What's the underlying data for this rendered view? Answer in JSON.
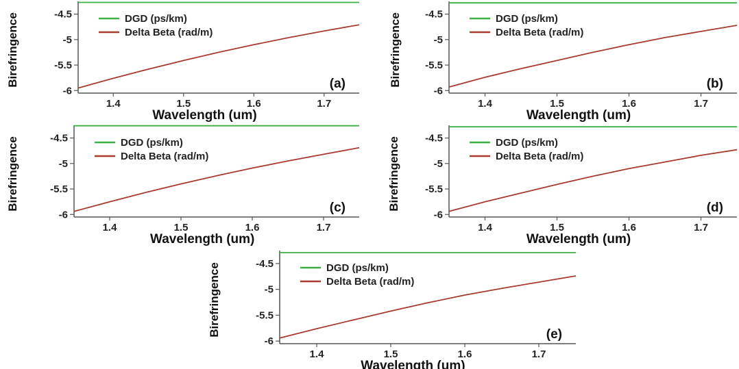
{
  "colors": {
    "dgd": "#3cb043",
    "delta_beta": "#a83a2f",
    "axis": "#555555"
  },
  "chart_data": [
    {
      "type": "line",
      "panel": "(a)",
      "xlabel": "Wavelength (um)",
      "ylabel": "Birefringence",
      "xlim": [
        1.35,
        1.75
      ],
      "ylim": [
        -6.05,
        -4.25
      ],
      "xticks": [
        "1.4",
        "1.5",
        "1.6",
        "1.7"
      ],
      "yticks": [
        "-4.5",
        "-5",
        "-5.5",
        "-6"
      ],
      "legend_position": "top-left",
      "series": [
        {
          "name": "DGD (ps/km)",
          "color": "#3cb043",
          "x": [
            1.35,
            1.75
          ],
          "y": [
            -4.27,
            -4.27
          ]
        },
        {
          "name": "Delta Beta (rad/m)",
          "color": "#a83a2f",
          "x": [
            1.35,
            1.4,
            1.45,
            1.5,
            1.55,
            1.6,
            1.65,
            1.7,
            1.75
          ],
          "y": [
            -5.95,
            -5.76,
            -5.58,
            -5.41,
            -5.25,
            -5.1,
            -4.96,
            -4.83,
            -4.71
          ]
        }
      ]
    },
    {
      "type": "line",
      "panel": "(b)",
      "xlabel": "Wavelength (um)",
      "ylabel": "Birefringence",
      "xlim": [
        1.35,
        1.75
      ],
      "ylim": [
        -6.05,
        -4.25
      ],
      "xticks": [
        "1.4",
        "1.5",
        "1.6",
        "1.7"
      ],
      "yticks": [
        "-4.5",
        "-5",
        "-5.5",
        "-6"
      ],
      "legend_position": "top-left",
      "series": [
        {
          "name": "DGD (ps/km)",
          "color": "#3cb043",
          "x": [
            1.35,
            1.75
          ],
          "y": [
            -4.28,
            -4.28
          ]
        },
        {
          "name": "Delta Beta (rad/m)",
          "color": "#a83a2f",
          "x": [
            1.35,
            1.4,
            1.45,
            1.5,
            1.55,
            1.6,
            1.65,
            1.7,
            1.75
          ],
          "y": [
            -5.93,
            -5.74,
            -5.57,
            -5.41,
            -5.25,
            -5.1,
            -4.96,
            -4.84,
            -4.72
          ]
        }
      ]
    },
    {
      "type": "line",
      "panel": "(c)",
      "xlabel": "Wavelength (um)",
      "ylabel": "Birefringence",
      "xlim": [
        1.35,
        1.75
      ],
      "ylim": [
        -6.05,
        -4.25
      ],
      "xticks": [
        "1.4",
        "1.5",
        "1.6",
        "1.7"
      ],
      "yticks": [
        "-4.5",
        "-5",
        "-5.5",
        "-6"
      ],
      "legend_position": "top-left",
      "series": [
        {
          "name": "DGD (ps/km)",
          "color": "#3cb043",
          "x": [
            1.35,
            1.75
          ],
          "y": [
            -4.26,
            -4.26
          ]
        },
        {
          "name": "Delta Beta (rad/m)",
          "color": "#a83a2f",
          "x": [
            1.35,
            1.4,
            1.45,
            1.5,
            1.55,
            1.6,
            1.65,
            1.7,
            1.75
          ],
          "y": [
            -5.94,
            -5.75,
            -5.57,
            -5.4,
            -5.24,
            -5.09,
            -4.95,
            -4.82,
            -4.69
          ]
        }
      ]
    },
    {
      "type": "line",
      "panel": "(d)",
      "xlabel": "Wavelength (um)",
      "ylabel": "Birefringence",
      "xlim": [
        1.35,
        1.75
      ],
      "ylim": [
        -6.05,
        -4.25
      ],
      "xticks": [
        "1.4",
        "1.5",
        "1.6",
        "1.7"
      ],
      "yticks": [
        "-4.5",
        "-5",
        "-5.5",
        "-6"
      ],
      "legend_position": "top-left",
      "series": [
        {
          "name": "DGD (ps/km)",
          "color": "#3cb043",
          "x": [
            1.35,
            1.75
          ],
          "y": [
            -4.28,
            -4.28
          ]
        },
        {
          "name": "Delta Beta (rad/m)",
          "color": "#a83a2f",
          "x": [
            1.35,
            1.4,
            1.45,
            1.5,
            1.55,
            1.6,
            1.65,
            1.7,
            1.75
          ],
          "y": [
            -5.94,
            -5.75,
            -5.58,
            -5.41,
            -5.25,
            -5.1,
            -4.97,
            -4.84,
            -4.73
          ]
        }
      ]
    },
    {
      "type": "line",
      "panel": "(e)",
      "xlabel": "Wavelength (um)",
      "ylabel": "Birefringence",
      "xlim": [
        1.35,
        1.75
      ],
      "ylim": [
        -6.05,
        -4.25
      ],
      "xticks": [
        "1.4",
        "1.5",
        "1.6",
        "1.7"
      ],
      "yticks": [
        "-4.5",
        "-5",
        "-5.5",
        "-6"
      ],
      "legend_position": "top-left",
      "series": [
        {
          "name": "DGD (ps/km)",
          "color": "#3cb043",
          "x": [
            1.35,
            1.75
          ],
          "y": [
            -4.29,
            -4.29
          ]
        },
        {
          "name": "Delta Beta (rad/m)",
          "color": "#a83a2f",
          "x": [
            1.35,
            1.4,
            1.45,
            1.5,
            1.55,
            1.6,
            1.65,
            1.7,
            1.75
          ],
          "y": [
            -5.94,
            -5.76,
            -5.59,
            -5.42,
            -5.26,
            -5.11,
            -4.98,
            -4.86,
            -4.74
          ]
        }
      ]
    }
  ]
}
